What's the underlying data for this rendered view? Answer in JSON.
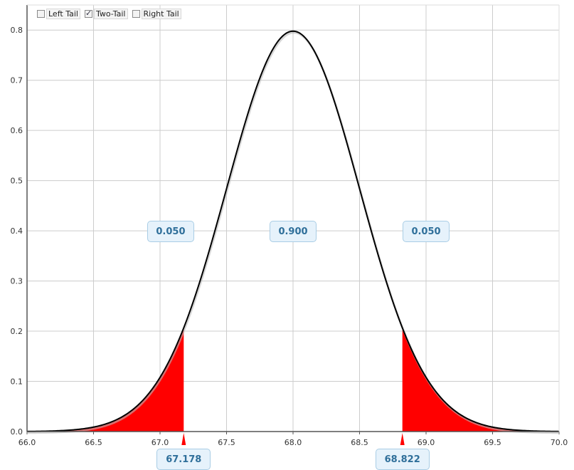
{
  "tail_options": [
    {
      "label": "Left Tail",
      "checked": false
    },
    {
      "label": "Two-Tail",
      "checked": true
    },
    {
      "label": "Right Tail",
      "checked": false
    }
  ],
  "colors": {
    "tail_fill": "#ff0000",
    "curve": "#000000",
    "label_bg": "#e6f2fb",
    "label_text": "#2f6f9a",
    "grid": "#cccccc"
  },
  "chart_data": {
    "type": "area",
    "distribution": "normal",
    "mean": 68.0,
    "sd": 0.5,
    "xlim": [
      66.0,
      70.0
    ],
    "ylim": [
      0.0,
      0.85
    ],
    "x_ticks": [
      "66.0",
      "66.5",
      "67.0",
      "67.5",
      "68.0",
      "68.5",
      "69.0",
      "69.5",
      "70.0"
    ],
    "y_ticks": [
      "0.0",
      "0.1",
      "0.2",
      "0.3",
      "0.4",
      "0.5",
      "0.6",
      "0.7",
      "0.8"
    ],
    "grid": true,
    "critical_values": [
      "67.178",
      "68.822"
    ],
    "regions": [
      {
        "name": "left",
        "prob": "0.050",
        "center_x": 67.08
      },
      {
        "name": "middle",
        "prob": "0.900",
        "center_x": 68.0
      },
      {
        "name": "right",
        "prob": "0.050",
        "center_x": 69.0
      }
    ],
    "label_y": 0.4
  }
}
